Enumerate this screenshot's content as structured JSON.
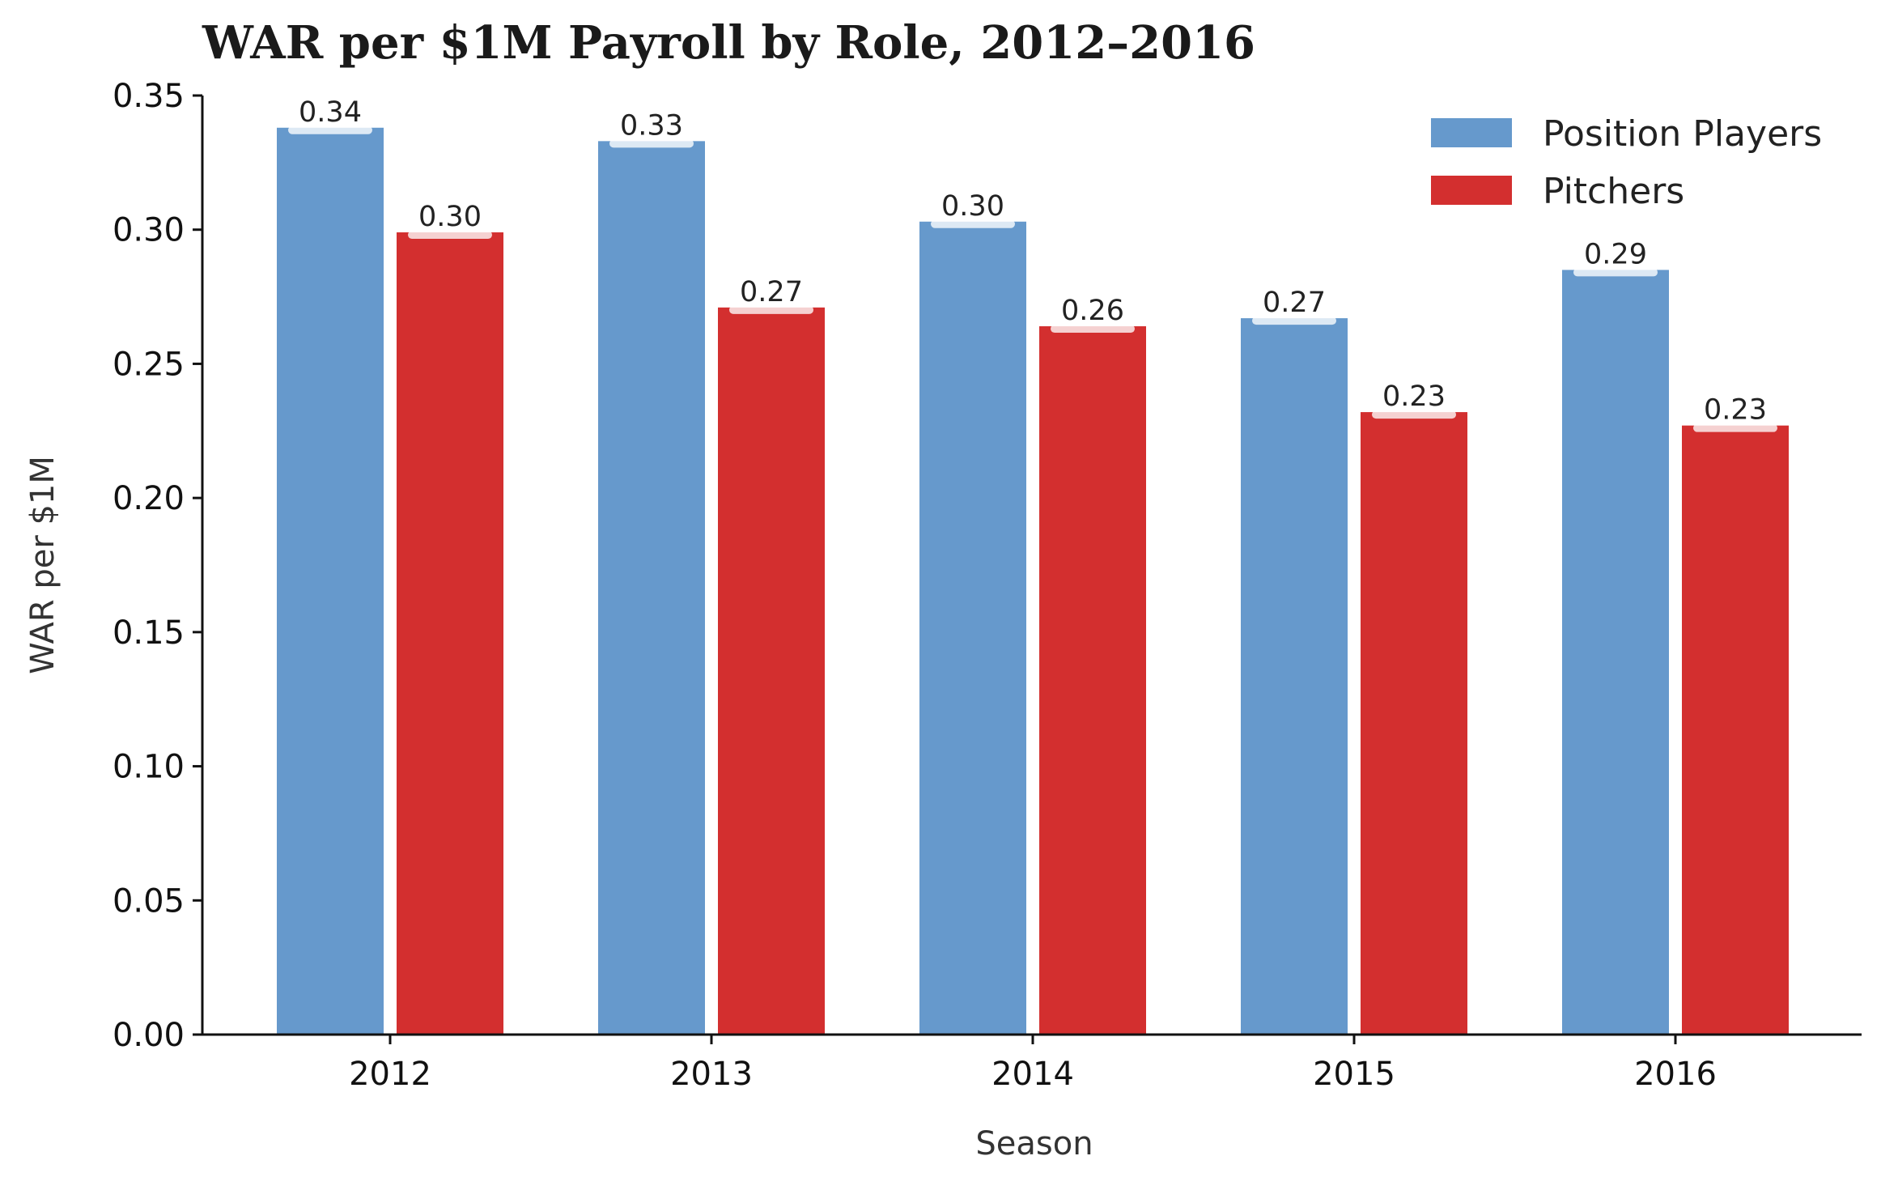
{
  "chart_data": {
    "type": "bar",
    "title": "WAR per $1M Payroll by Role, 2012–2016",
    "xlabel": "Season",
    "ylabel": "WAR per $1M",
    "categories": [
      "2012",
      "2013",
      "2014",
      "2015",
      "2016"
    ],
    "series": [
      {
        "name": "Position Players",
        "values": [
          0.338,
          0.333,
          0.303,
          0.267,
          0.285
        ],
        "labels": [
          "0.34",
          "0.33",
          "0.30",
          "0.27",
          "0.29"
        ],
        "color": "#6699cc"
      },
      {
        "name": "Pitchers",
        "values": [
          0.299,
          0.271,
          0.264,
          0.232,
          0.227
        ],
        "labels": [
          "0.30",
          "0.27",
          "0.26",
          "0.23",
          "0.23"
        ],
        "color": "#d32f2f"
      }
    ],
    "ylim": [
      0,
      0.35
    ],
    "yticks": [
      "0.00",
      "0.05",
      "0.10",
      "0.15",
      "0.20",
      "0.25",
      "0.30",
      "0.35"
    ],
    "legend_position": "top-right",
    "grid": false
  }
}
